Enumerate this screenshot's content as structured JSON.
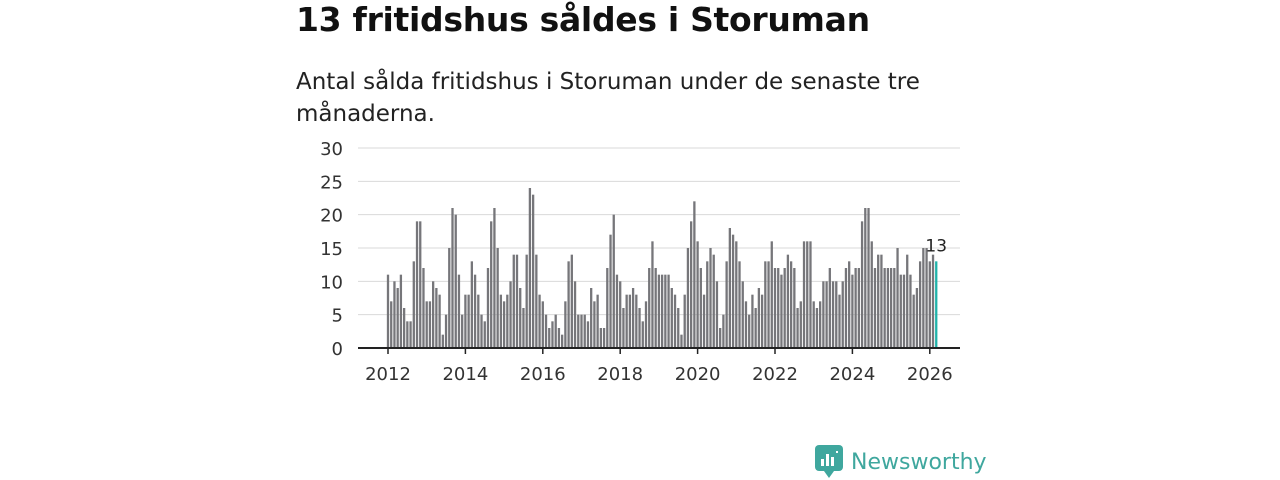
{
  "header": {
    "title": "13 fritidshus såldes i Storuman",
    "subtitle": "Antal sålda fritidshus i Storuman under de senaste tre månaderna."
  },
  "brand": {
    "name": "Newsworthy",
    "icon": "newsworthy-logo-icon",
    "color": "#3fa79e"
  },
  "colors": {
    "bar": "#76767a",
    "highlight": "#20b2aa",
    "grid": "#d9d9d9",
    "axis": "#222222"
  },
  "chart_data": {
    "type": "bar",
    "title": "Antal sålda fritidshus i Storuman under de senaste tre månaderna.",
    "xlabel": "",
    "ylabel": "",
    "ylim": [
      0,
      30
    ],
    "yticks": [
      0,
      5,
      10,
      15,
      20,
      25,
      30
    ],
    "xticks": [
      "2012",
      "2014",
      "2016",
      "2018",
      "2020",
      "2022",
      "2024",
      "2026"
    ],
    "x_start": "2012-01",
    "frequency": "monthly",
    "values": [
      11,
      7,
      10,
      9,
      11,
      6,
      4,
      4,
      13,
      19,
      19,
      12,
      7,
      7,
      10,
      9,
      8,
      2,
      5,
      15,
      21,
      20,
      11,
      5,
      8,
      8,
      13,
      11,
      8,
      5,
      4,
      12,
      19,
      21,
      15,
      8,
      7,
      8,
      10,
      14,
      14,
      9,
      6,
      14,
      24,
      23,
      14,
      8,
      7,
      5,
      3,
      4,
      5,
      3,
      2,
      7,
      13,
      14,
      10,
      5,
      5,
      5,
      4,
      9,
      7,
      8,
      3,
      3,
      12,
      17,
      20,
      11,
      10,
      6,
      8,
      8,
      9,
      8,
      6,
      4,
      7,
      12,
      16,
      12,
      11,
      11,
      11,
      11,
      9,
      8,
      6,
      2,
      8,
      15,
      19,
      22,
      16,
      12,
      8,
      13,
      15,
      14,
      10,
      3,
      5,
      13,
      18,
      17,
      16,
      13,
      10,
      7,
      5,
      8,
      6,
      9,
      8,
      13,
      13,
      16,
      12,
      12,
      11,
      12,
      14,
      13,
      12,
      6,
      7,
      16,
      16,
      16,
      7,
      6,
      7,
      10,
      10,
      12,
      10,
      10,
      8,
      10,
      12,
      13,
      11,
      12,
      12,
      19,
      21,
      21,
      16,
      12,
      14,
      14,
      12,
      12,
      12,
      12,
      15,
      11,
      11,
      14,
      11,
      8,
      9,
      13,
      15,
      15,
      13,
      14,
      13
    ],
    "last_value_label": "13"
  }
}
